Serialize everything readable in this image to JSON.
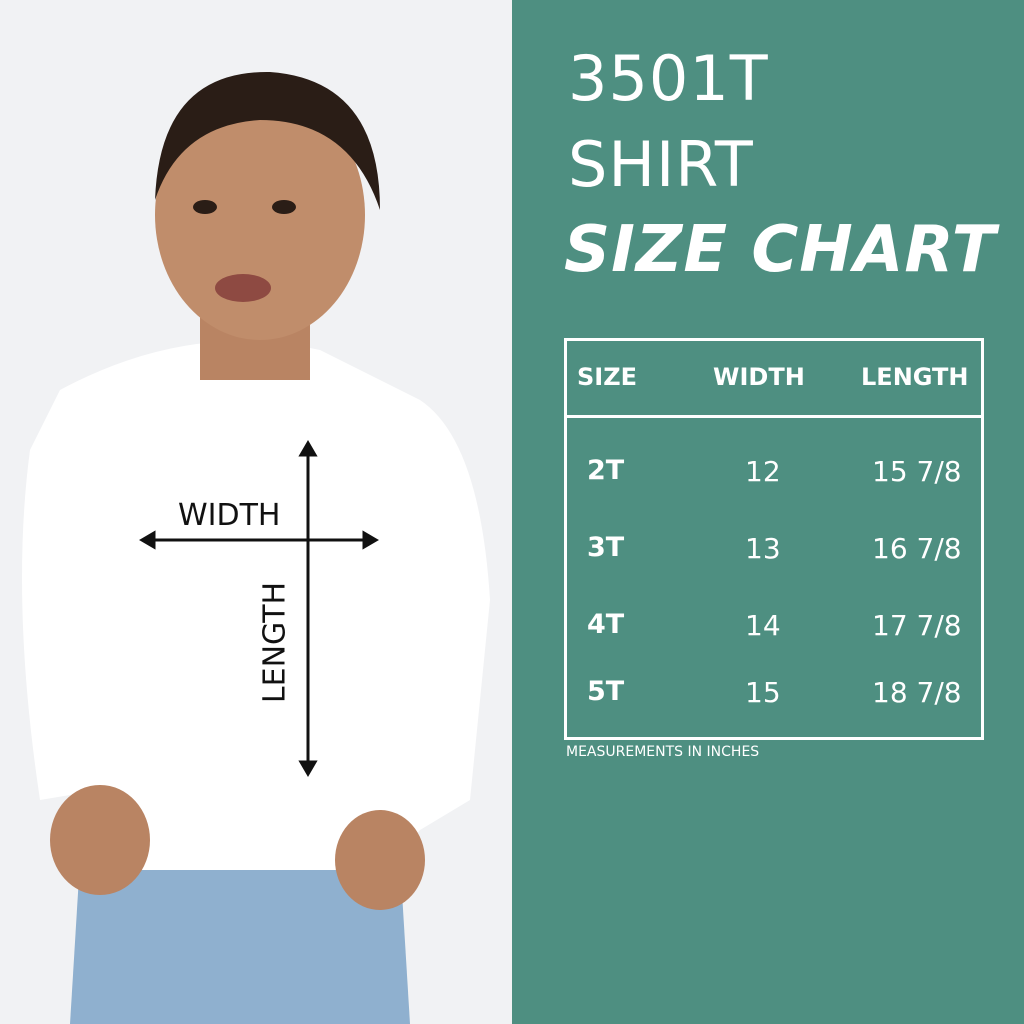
{
  "title": {
    "line1": "3501T",
    "line2": "SHIRT",
    "line3": "SIZE CHART"
  },
  "photo": {
    "width_label": "WIDTH",
    "length_label": "LENGTH"
  },
  "table": {
    "headers": [
      "SIZE",
      "WIDTH",
      "LENGTH"
    ],
    "rows": [
      [
        "2T",
        "12",
        "15 7/8"
      ],
      [
        "3T",
        "13",
        "16 7/8"
      ],
      [
        "4T",
        "14",
        "17 7/8"
      ],
      [
        "5T",
        "15",
        "18 7/8"
      ]
    ]
  },
  "note": "MEASUREMENTS IN INCHES",
  "colors": {
    "panel": "#4e8f81",
    "text": "#ffffff",
    "photo_bg": "#f1f2f4"
  }
}
